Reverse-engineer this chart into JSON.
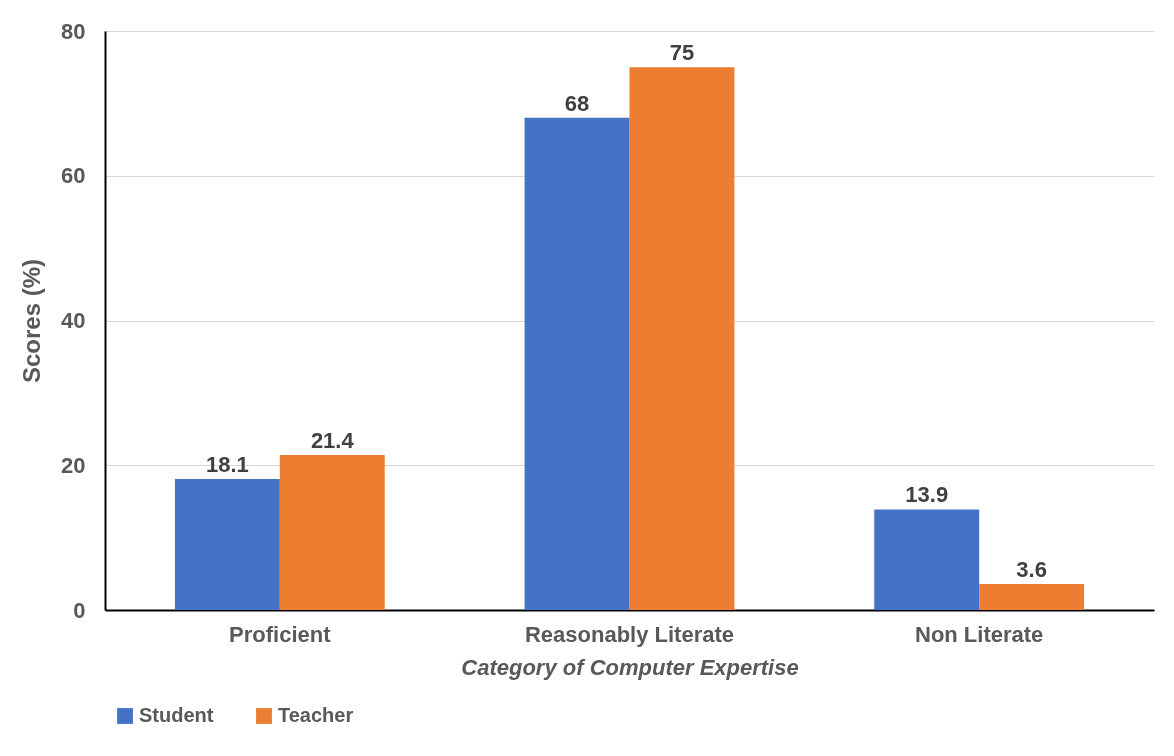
{
  "chart_data": {
    "type": "bar",
    "xlabel": "Category of Computer Expertise",
    "ylabel": "Scores (%)",
    "categories": [
      "Proficient",
      "Reasonably Literate",
      "Non Literate"
    ],
    "series": [
      {
        "name": "Student",
        "color": "#4472c4",
        "values": [
          18.1,
          68,
          13.9
        ]
      },
      {
        "name": "Teacher",
        "color": "#ed7d31",
        "values": [
          21.4,
          75,
          3.6
        ]
      }
    ],
    "ylim": [
      0,
      80
    ],
    "yticks": [
      0,
      20,
      40,
      60,
      80
    ],
    "grid": "y",
    "legend": "bottom",
    "data_labels": true
  }
}
